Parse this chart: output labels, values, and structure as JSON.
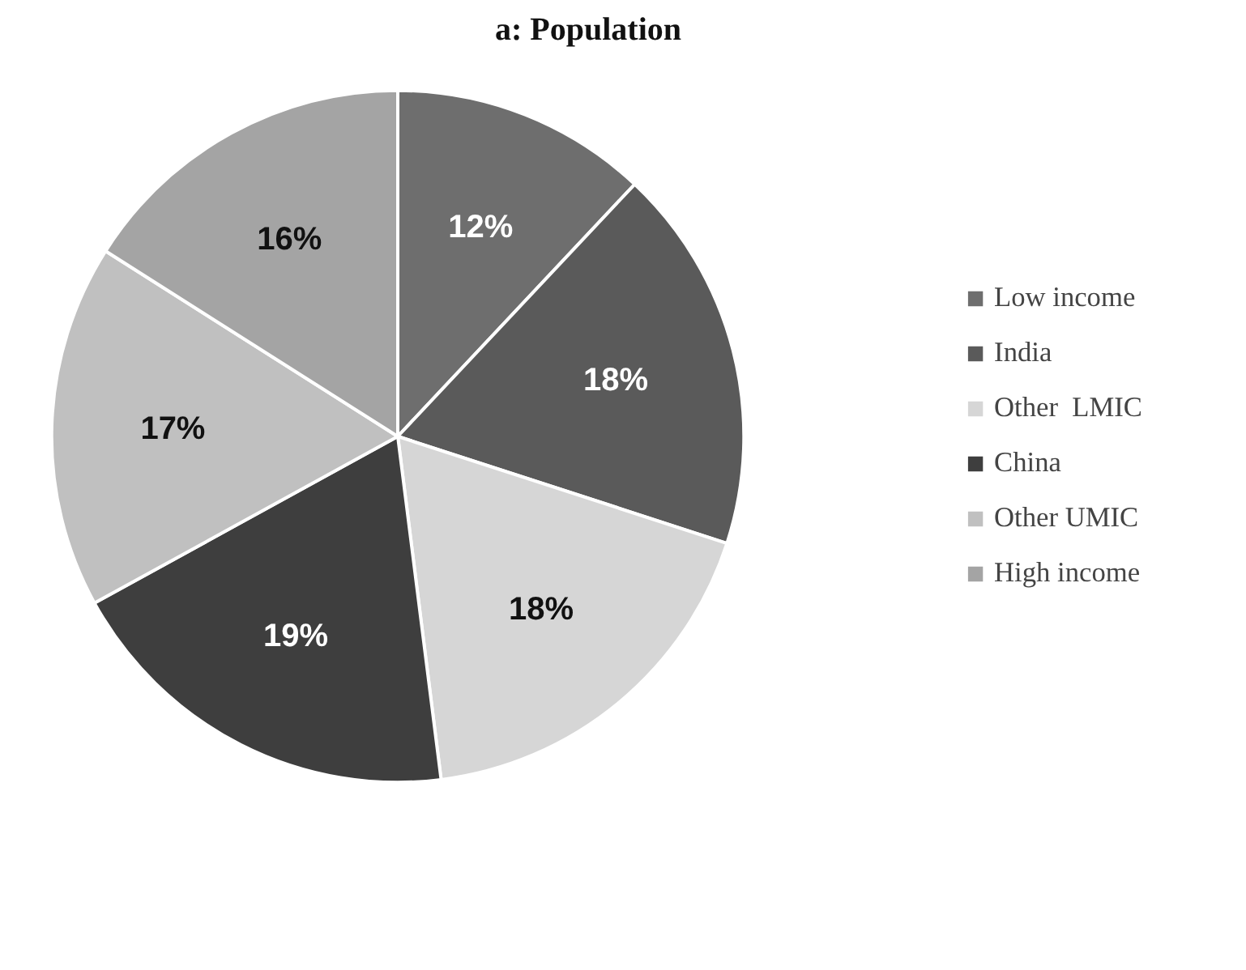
{
  "chart_data": {
    "type": "pie",
    "title": "a: Population",
    "categories": [
      "Low income",
      "India",
      "Other  LMIC",
      "China",
      "Other UMIC",
      "High income"
    ],
    "values": [
      12,
      18,
      18,
      19,
      17,
      16
    ],
    "value_labels": [
      "12%",
      "18%",
      "18%",
      "19%",
      "17%",
      "16%"
    ],
    "colors": [
      "#6e6e6e",
      "#5a5a5a",
      "#d6d6d6",
      "#3e3e3e",
      "#c0c0c0",
      "#a4a4a4"
    ],
    "legend": "right"
  }
}
